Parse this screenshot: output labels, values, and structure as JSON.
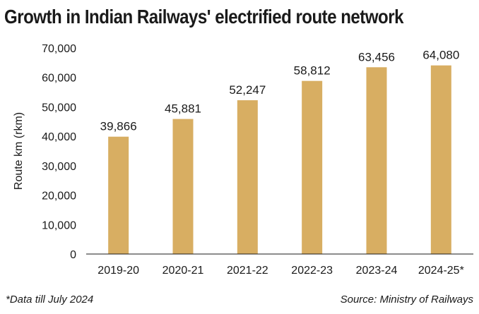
{
  "chart_data": {
    "type": "bar",
    "title": "Growth in Indian Railways' electrified route network",
    "xlabel": "",
    "ylabel": "Route km (rkm)",
    "categories": [
      "2019-20",
      "2020-21",
      "2021-22",
      "2022-23",
      "2023-24",
      "2024-25*"
    ],
    "values": [
      39866,
      45881,
      52247,
      58812,
      63456,
      64080
    ],
    "data_labels": [
      "39,866",
      "45,881",
      "52,247",
      "58,812",
      "63,456",
      "64,080"
    ],
    "ylim": [
      0,
      70000
    ],
    "y_ticks": [
      0,
      10000,
      20000,
      30000,
      40000,
      50000,
      60000,
      70000
    ],
    "y_tick_labels": [
      "0",
      "10,000",
      "20,000",
      "30,000",
      "40,000",
      "50,000",
      "60,000",
      "70,000"
    ],
    "grid": false,
    "bar_color": "#d8ae62"
  },
  "footnote": "*Data till July 2024",
  "source": "Source: Ministry of Railways"
}
